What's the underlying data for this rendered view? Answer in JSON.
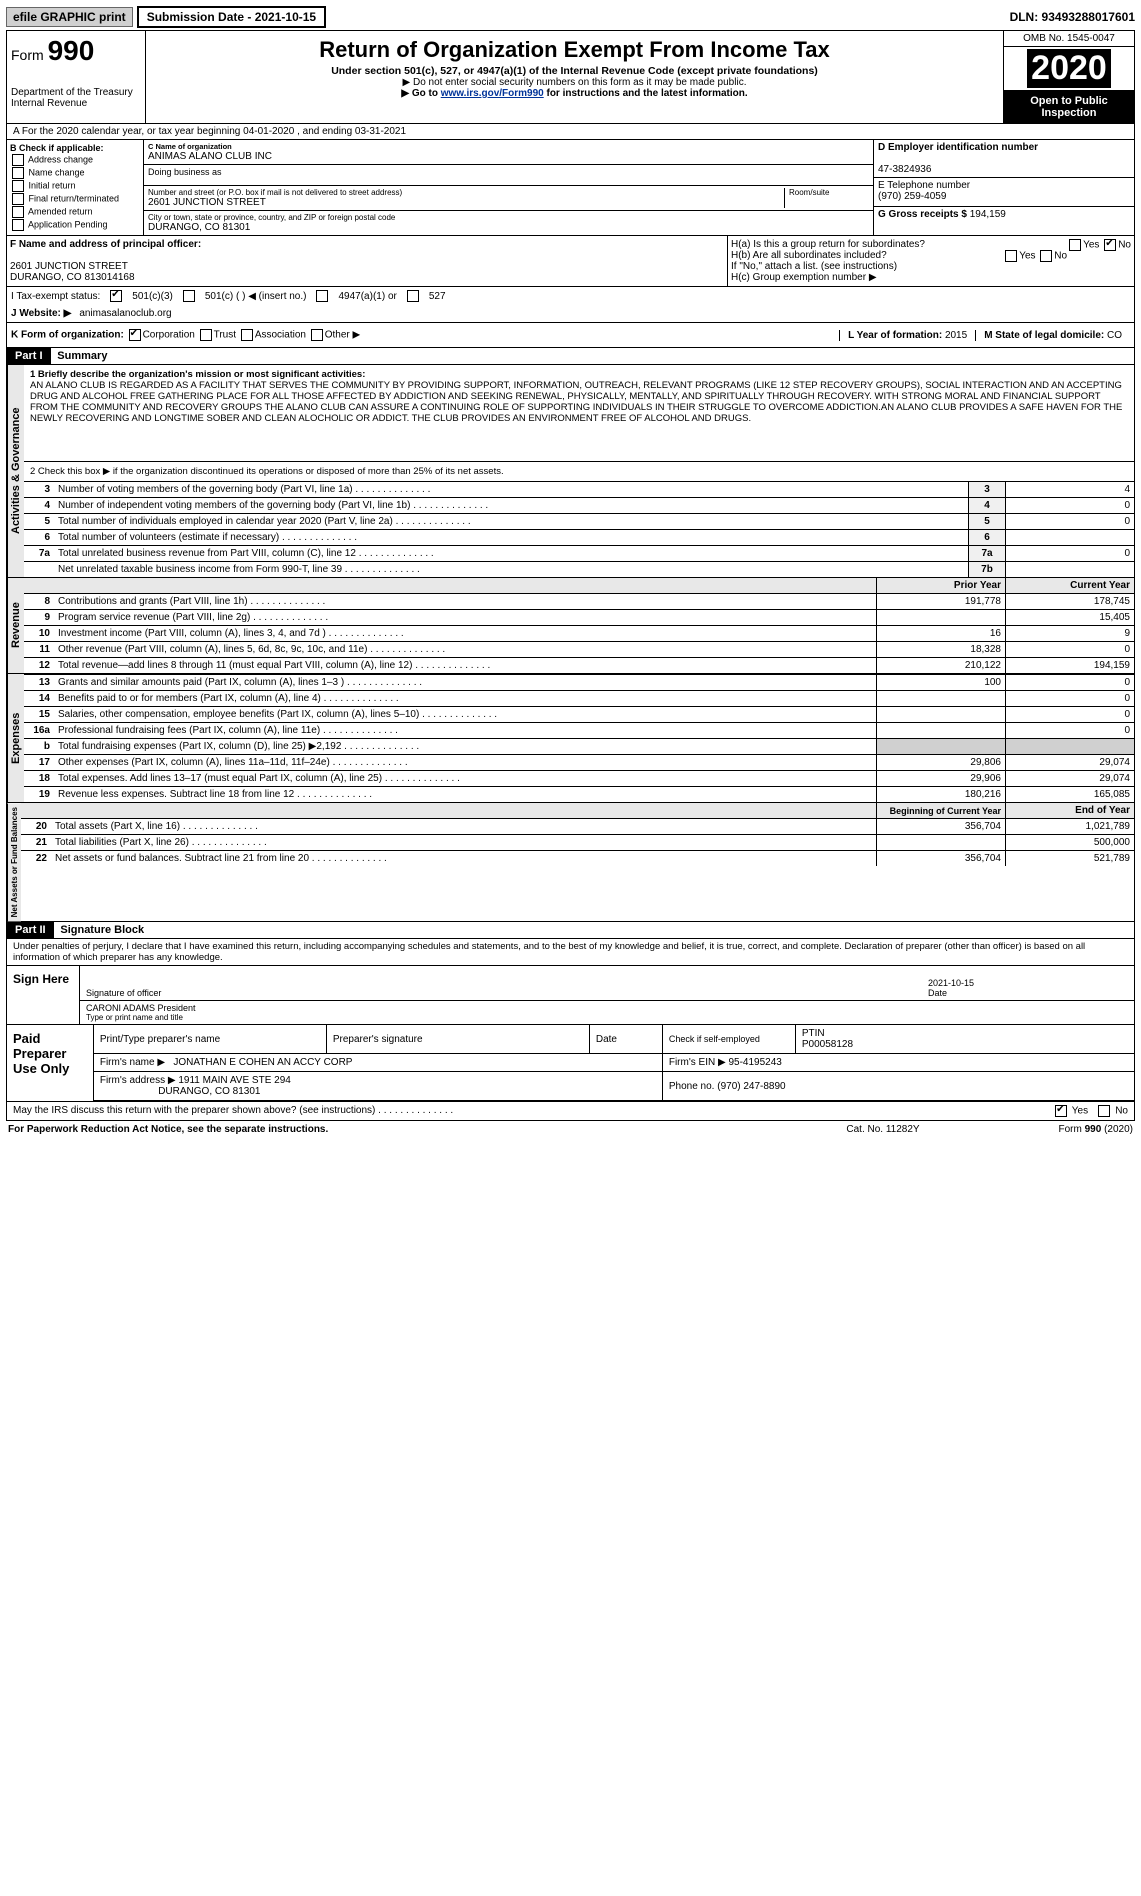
{
  "topbar": {
    "efile_label": "efile GRAPHIC print",
    "submission_label": "Submission Date - 2021-10-15",
    "dln": "DLN: 93493288017601"
  },
  "header": {
    "form_prefix": "Form",
    "form_number": "990",
    "dept": "Department of the Treasury",
    "irs": "Internal Revenue",
    "title": "Return of Organization Exempt From Income Tax",
    "subtitle": "Under section 501(c), 527, or 4947(a)(1) of the Internal Revenue Code (except private foundations)",
    "do_not": "▶ Do not enter social security numbers on this form as it may be made public.",
    "goto_prefix": "▶ Go to ",
    "goto_url": "www.irs.gov/Form990",
    "goto_suffix": " for instructions and the latest information.",
    "omb": "OMB No. 1545-0047",
    "year": "2020",
    "open": "Open to Public Inspection"
  },
  "period": {
    "text": "A For the 2020 calendar year, or tax year beginning 04-01-2020   , and ending 03-31-2021"
  },
  "section_b": {
    "heading": "B Check if applicable:",
    "opts": [
      "Address change",
      "Name change",
      "Initial return",
      "Final return/terminated",
      "Amended return",
      "Application Pending"
    ]
  },
  "section_c": {
    "name_label": "C Name of organization",
    "name": "ANIMAS ALANO CLUB INC",
    "dba_label": "Doing business as",
    "dba": "",
    "street_label": "Number and street (or P.O. box if mail is not delivered to street address)",
    "room_label": "Room/suite",
    "street": "2601 JUNCTION STREET",
    "city_label": "City or town, state or province, country, and ZIP or foreign postal code",
    "city": "DURANGO, CO  81301"
  },
  "section_d": {
    "label": "D Employer identification number",
    "value": "47-3824936"
  },
  "section_e": {
    "label": "E Telephone number",
    "value": "(970) 259-4059"
  },
  "section_g": {
    "label": "G Gross receipts $",
    "value": "194,159"
  },
  "section_f": {
    "label": "F  Name and address of principal officer:",
    "line1": "2601 JUNCTION STREET",
    "line2": "DURANGO, CO  813014168"
  },
  "section_h": {
    "a": "H(a)  Is this a group return for subordinates?",
    "a_yes": "Yes",
    "a_no": "No",
    "b": "H(b)  Are all subordinates included?",
    "b_yes": "Yes",
    "b_no": "No",
    "attach": "If \"No,\" attach a list. (see instructions)",
    "c": "H(c)  Group exemption number ▶"
  },
  "section_i": {
    "label": "I   Tax-exempt status:",
    "c3": "501(c)(3)",
    "cx": "501(c) (  )  ◀ (insert no.)",
    "a1": "4947(a)(1) or",
    "s527": "527"
  },
  "section_j": {
    "label": "J   Website: ▶",
    "value": "animasalanoclub.org"
  },
  "section_k": {
    "label": "K Form of organization:",
    "corp": "Corporation",
    "trust": "Trust",
    "assoc": "Association",
    "other": "Other ▶"
  },
  "section_l": {
    "label": "L Year of formation:",
    "value": "2015"
  },
  "section_m": {
    "label": "M State of legal domicile:",
    "value": "CO"
  },
  "part1": {
    "header": "Part I",
    "title": "Summary",
    "line1_label": "1  Briefly describe the organization's mission or most significant activities:",
    "mission": "AN ALANO CLUB IS REGARDED AS A FACILITY THAT SERVES THE COMMUNITY BY PROVIDING SUPPORT, INFORMATION, OUTREACH, RELEVANT PROGRAMS (LIKE 12 STEP RECOVERY GROUPS), SOCIAL INTERACTION AND AN ACCEPTING DRUG AND ALCOHOL FREE GATHERING PLACE FOR ALL THOSE AFFECTED BY ADDICTION AND SEEKING RENEWAL, PHYSICALLY, MENTALLY, AND SPIRITUALLY THROUGH RECOVERY. WITH STRONG MORAL AND FINANCIAL SUPPORT FROM THE COMMUNITY AND RECOVERY GROUPS THE ALANO CLUB CAN ASSURE A CONTINUING ROLE OF SUPPORTING INDIVIDUALS IN THEIR STRUGGLE TO OVERCOME ADDICTION.AN ALANO CLUB PROVIDES A SAFE HAVEN FOR THE NEWLY RECOVERING AND LONGTIME SOBER AND CLEAN ALOCHOLIC OR ADDICT. THE CLUB PROVIDES AN ENVIRONMENT FREE OF ALCOHOL AND DRUGS.",
    "line2": "2   Check this box ▶      if the organization discontinued its operations or disposed of more than 25% of its net assets.",
    "gov_tab": "Activities & Governance",
    "rev_tab": "Revenue",
    "exp_tab": "Expenses",
    "net_tab": "Net Assets or Fund Balances",
    "gov_lines": [
      {
        "n": "3",
        "t": "Number of voting members of the governing body (Part VI, line 1a)",
        "box": "3",
        "v": "4"
      },
      {
        "n": "4",
        "t": "Number of independent voting members of the governing body (Part VI, line 1b)",
        "box": "4",
        "v": "0"
      },
      {
        "n": "5",
        "t": "Total number of individuals employed in calendar year 2020 (Part V, line 2a)",
        "box": "5",
        "v": "0"
      },
      {
        "n": "6",
        "t": "Total number of volunteers (estimate if necessary)",
        "box": "6",
        "v": ""
      },
      {
        "n": "7a",
        "t": "Total unrelated business revenue from Part VIII, column (C), line 12",
        "box": "7a",
        "v": "0"
      },
      {
        "n": "",
        "t": "Net unrelated taxable business income from Form 990-T, line 39",
        "box": "7b",
        "v": ""
      }
    ],
    "prior_label": "Prior Year",
    "current_label": "Current Year",
    "rev_lines": [
      {
        "n": "8",
        "t": "Contributions and grants (Part VIII, line 1h)",
        "p": "191,778",
        "c": "178,745"
      },
      {
        "n": "9",
        "t": "Program service revenue (Part VIII, line 2g)",
        "p": "",
        "c": "15,405"
      },
      {
        "n": "10",
        "t": "Investment income (Part VIII, column (A), lines 3, 4, and 7d )",
        "p": "16",
        "c": "9"
      },
      {
        "n": "11",
        "t": "Other revenue (Part VIII, column (A), lines 5, 6d, 8c, 9c, 10c, and 11e)",
        "p": "18,328",
        "c": "0"
      },
      {
        "n": "12",
        "t": "Total revenue—add lines 8 through 11 (must equal Part VIII, column (A), line 12)",
        "p": "210,122",
        "c": "194,159"
      }
    ],
    "exp_lines": [
      {
        "n": "13",
        "t": "Grants and similar amounts paid (Part IX, column (A), lines 1–3 )",
        "p": "100",
        "c": "0"
      },
      {
        "n": "14",
        "t": "Benefits paid to or for members (Part IX, column (A), line 4)",
        "p": "",
        "c": "0"
      },
      {
        "n": "15",
        "t": "Salaries, other compensation, employee benefits (Part IX, column (A), lines 5–10)",
        "p": "",
        "c": "0"
      },
      {
        "n": "16a",
        "t": "Professional fundraising fees (Part IX, column (A), line 11e)",
        "p": "",
        "c": "0"
      },
      {
        "n": "b",
        "t": "Total fundraising expenses (Part IX, column (D), line 25) ▶2,192",
        "p": "GREY",
        "c": "GREY"
      },
      {
        "n": "17",
        "t": "Other expenses (Part IX, column (A), lines 11a–11d, 11f–24e)",
        "p": "29,806",
        "c": "29,074"
      },
      {
        "n": "18",
        "t": "Total expenses. Add lines 13–17 (must equal Part IX, column (A), line 25)",
        "p": "29,906",
        "c": "29,074"
      },
      {
        "n": "19",
        "t": "Revenue less expenses. Subtract line 18 from line 12",
        "p": "180,216",
        "c": "165,085"
      }
    ],
    "begin_label": "Beginning of Current Year",
    "end_label": "End of Year",
    "net_lines": [
      {
        "n": "20",
        "t": "Total assets (Part X, line 16)",
        "p": "356,704",
        "c": "1,021,789"
      },
      {
        "n": "21",
        "t": "Total liabilities (Part X, line 26)",
        "p": "",
        "c": "500,000"
      },
      {
        "n": "22",
        "t": "Net assets or fund balances. Subtract line 21 from line 20",
        "p": "356,704",
        "c": "521,789"
      }
    ]
  },
  "part2": {
    "header": "Part II",
    "title": "Signature Block",
    "perjury": "Under penalties of perjury, I declare that I have examined this return, including accompanying schedules and statements, and to the best of my knowledge and belief, it is true, correct, and complete. Declaration of preparer (other than officer) is based on all information of which preparer has any knowledge.",
    "sign_here": "Sign Here",
    "sig_officer": "Signature of officer",
    "date_label": "Date",
    "date": "2021-10-15",
    "name_title": "CARONI ADAMS President",
    "type_name": "Type or print name and title",
    "paid": "Paid Preparer Use Only",
    "pt_name_label": "Print/Type preparer's name",
    "sig_label": "Preparer's signature",
    "check_label": "Check          if self-employed",
    "ptin_label": "PTIN",
    "ptin": "P00058128",
    "firm_name_label": "Firm's name    ▶",
    "firm_name": "JONATHAN E COHEN AN ACCY CORP",
    "firm_ein_label": "Firm's EIN ▶",
    "firm_ein": "95-4195243",
    "firm_addr_label": "Firm's address ▶",
    "firm_addr1": "1911 MAIN AVE STE 294",
    "firm_addr2": "DURANGO, CO  81301",
    "phone_label": "Phone no.",
    "phone": "(970) 247-8890",
    "discuss": "May the IRS discuss this return with the preparer shown above? (see instructions)",
    "yes": "Yes",
    "no": "No"
  },
  "footer": {
    "pra": "For Paperwork Reduction Act Notice, see the separate instructions.",
    "cat": "Cat. No. 11282Y",
    "form": "Form 990 (2020)"
  }
}
